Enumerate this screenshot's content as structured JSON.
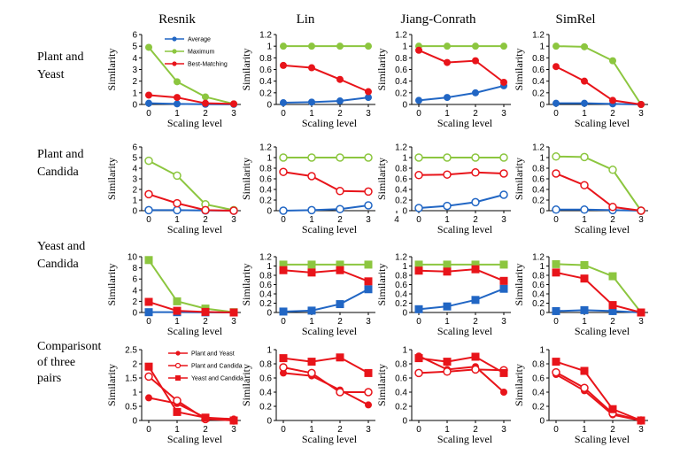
{
  "colors": {
    "Average": "#2166c4",
    "Maximum": "#8cc63f",
    "Best-Matching": "#e8141a",
    "pairs": "#e8141a"
  },
  "columns": [
    "Resnik",
    "Lin",
    "Jiang-Conrath",
    "SimRel"
  ],
  "rows": [
    [
      "Plant and",
      "Yeast"
    ],
    [
      "Plant and",
      "Candida"
    ],
    [
      "Yeast and",
      "Candida"
    ],
    [
      "Comparisont",
      "of three",
      "pairs"
    ]
  ],
  "chart_data": [
    {
      "type": "line",
      "row": 0,
      "col": 0,
      "marker": "filled-circle",
      "xlabel": "Scaling level",
      "ylabel": "Similarity",
      "x": [
        0,
        1,
        2,
        3
      ],
      "xticks": [
        "0",
        "1",
        "2",
        "3"
      ],
      "ylim": [
        0,
        6
      ],
      "yticks": [
        "0",
        "1",
        "2",
        "3",
        "4",
        "5",
        "6"
      ],
      "legend": true,
      "series": [
        {
          "name": "Average",
          "values": [
            0.1,
            0.05,
            0.02,
            0.01
          ]
        },
        {
          "name": "Maximum",
          "values": [
            4.9,
            1.95,
            0.65,
            0.05
          ]
        },
        {
          "name": "Best-Matching",
          "values": [
            0.8,
            0.6,
            0.1,
            0.05
          ]
        }
      ]
    },
    {
      "type": "line",
      "row": 0,
      "col": 1,
      "marker": "filled-circle",
      "xlabel": "Scaling level",
      "ylabel": "Similarity",
      "x": [
        0,
        1,
        2,
        3
      ],
      "xticks": [
        "0",
        "1",
        "2",
        "3"
      ],
      "ylim": [
        0,
        1.2
      ],
      "yticks": [
        "0",
        "0.2",
        "0.4",
        "0.6",
        "0.8",
        "1",
        "1.2"
      ],
      "series": [
        {
          "name": "Average",
          "values": [
            0.03,
            0.04,
            0.06,
            0.12
          ]
        },
        {
          "name": "Maximum",
          "values": [
            1.0,
            1.0,
            1.0,
            1.0
          ]
        },
        {
          "name": "Best-Matching",
          "values": [
            0.67,
            0.63,
            0.43,
            0.22
          ]
        }
      ]
    },
    {
      "type": "line",
      "row": 0,
      "col": 2,
      "marker": "filled-circle",
      "xlabel": "Scaling level",
      "ylabel": "Similarity",
      "x": [
        0,
        1,
        2,
        3
      ],
      "xticks": [
        "0",
        "1",
        "2",
        "3"
      ],
      "ylim": [
        0,
        1.2
      ],
      "yticks": [
        "0",
        "0.2",
        "0.4",
        "0.6",
        "0.8",
        "1",
        "1.2"
      ],
      "series": [
        {
          "name": "Average",
          "values": [
            0.07,
            0.12,
            0.2,
            0.32
          ]
        },
        {
          "name": "Maximum",
          "values": [
            1.0,
            1.0,
            1.0,
            1.0
          ]
        },
        {
          "name": "Best-Matching",
          "values": [
            0.93,
            0.72,
            0.75,
            0.38
          ]
        }
      ]
    },
    {
      "type": "line",
      "row": 0,
      "col": 3,
      "marker": "filled-circle",
      "xlabel": "Scaling level",
      "ylabel": "Similarity",
      "x": [
        0,
        1,
        2,
        3
      ],
      "xticks": [
        "0",
        "1",
        "2",
        "3"
      ],
      "ylim": [
        0,
        1.2
      ],
      "yticks": [
        "0",
        "0.2",
        "0.4",
        "0.6",
        "0.8",
        "1",
        "1.2"
      ],
      "series": [
        {
          "name": "Average",
          "values": [
            0.02,
            0.02,
            0.01,
            0.0
          ]
        },
        {
          "name": "Maximum",
          "values": [
            1.0,
            0.99,
            0.75,
            0.0
          ]
        },
        {
          "name": "Best-Matching",
          "values": [
            0.65,
            0.4,
            0.07,
            0.0
          ]
        }
      ]
    },
    {
      "type": "line",
      "row": 1,
      "col": 0,
      "marker": "hollow-circle",
      "xlabel": "Scaling level",
      "ylabel": "Similarity",
      "x": [
        0,
        1,
        2,
        3
      ],
      "xticks": [
        "0",
        "1",
        "2",
        "3"
      ],
      "ylim": [
        0,
        6
      ],
      "yticks": [
        "0",
        "1",
        "2",
        "3",
        "4",
        "5",
        "6"
      ],
      "series": [
        {
          "name": "Average",
          "values": [
            0.05,
            0.05,
            0.02,
            0.0
          ]
        },
        {
          "name": "Maximum",
          "values": [
            4.7,
            3.3,
            0.6,
            0.05
          ]
        },
        {
          "name": "Best-Matching",
          "values": [
            1.55,
            0.7,
            0.05,
            0.0
          ]
        }
      ]
    },
    {
      "type": "line",
      "row": 1,
      "col": 1,
      "marker": "hollow-circle",
      "xlabel": "Scaling level",
      "ylabel": "Similarity",
      "x": [
        0,
        1,
        2,
        3
      ],
      "xticks": [
        "0",
        "1",
        "2",
        "3",
        "4"
      ],
      "ylim": [
        0,
        1.2
      ],
      "yticks": [
        "0",
        "0.2",
        "0.4",
        "0.6",
        "0.8",
        "1",
        "1.2"
      ],
      "series": [
        {
          "name": "Average",
          "values": [
            0.0,
            0.01,
            0.03,
            0.1
          ]
        },
        {
          "name": "Maximum",
          "values": [
            1.0,
            1.0,
            1.0,
            1.0
          ]
        },
        {
          "name": "Best-Matching",
          "values": [
            0.73,
            0.65,
            0.37,
            0.36
          ]
        }
      ]
    },
    {
      "type": "line",
      "row": 1,
      "col": 2,
      "marker": "hollow-circle",
      "xlabel": "Scaling level",
      "ylabel": "Similarity",
      "x": [
        0,
        1,
        2,
        3
      ],
      "xticks": [
        "0",
        "1",
        "2",
        "3"
      ],
      "ylim": [
        0,
        1.2
      ],
      "yticks": [
        "0",
        "0.2",
        "0.4",
        "0.6",
        "0.8",
        "1",
        "1.2"
      ],
      "series": [
        {
          "name": "Average",
          "values": [
            0.05,
            0.09,
            0.16,
            0.3
          ]
        },
        {
          "name": "Maximum",
          "values": [
            1.0,
            1.0,
            1.0,
            1.0
          ]
        },
        {
          "name": "Best-Matching",
          "values": [
            0.67,
            0.68,
            0.72,
            0.7
          ]
        }
      ]
    },
    {
      "type": "line",
      "row": 1,
      "col": 3,
      "marker": "hollow-circle",
      "xlabel": "Scaling level",
      "ylabel": "Similarity",
      "x": [
        0,
        1,
        2,
        3
      ],
      "xticks": [
        "0",
        "1",
        "2",
        "3"
      ],
      "ylim": [
        0,
        1.2
      ],
      "yticks": [
        "0",
        "0.2",
        "0.4",
        "0.6",
        "0.8",
        "1",
        "1.2"
      ],
      "series": [
        {
          "name": "Average",
          "values": [
            0.02,
            0.02,
            0.01,
            0.0
          ]
        },
        {
          "name": "Maximum",
          "values": [
            1.02,
            1.01,
            0.77,
            0.0
          ]
        },
        {
          "name": "Best-Matching",
          "values": [
            0.7,
            0.48,
            0.07,
            0.0
          ]
        }
      ]
    },
    {
      "type": "line",
      "row": 2,
      "col": 0,
      "marker": "filled-square",
      "xlabel": "Scaling level",
      "ylabel": "Similarity",
      "x": [
        0,
        1,
        2,
        3
      ],
      "xticks": [
        "0",
        "1",
        "2",
        "3"
      ],
      "ylim": [
        0,
        10
      ],
      "yticks": [
        "0",
        "2",
        "4",
        "6",
        "8",
        "10"
      ],
      "series": [
        {
          "name": "Average",
          "values": [
            0.05,
            0.05,
            0.02,
            0.0
          ]
        },
        {
          "name": "Maximum",
          "values": [
            9.4,
            2.0,
            0.7,
            0.05
          ]
        },
        {
          "name": "Best-Matching",
          "values": [
            1.9,
            0.3,
            0.1,
            0.0
          ]
        }
      ]
    },
    {
      "type": "line",
      "row": 2,
      "col": 1,
      "marker": "filled-square",
      "xlabel": "Scaling level",
      "ylabel": "Similarity",
      "x": [
        0,
        1,
        2,
        3
      ],
      "xticks": [
        "0",
        "1",
        "2",
        "3"
      ],
      "ylim": [
        0,
        1.2
      ],
      "yticks": [
        "0",
        "0.2",
        "0.4",
        "0.6",
        "0.8",
        "1",
        "1.2"
      ],
      "series": [
        {
          "name": "Average",
          "values": [
            0.02,
            0.04,
            0.18,
            0.5
          ]
        },
        {
          "name": "Maximum",
          "values": [
            1.03,
            1.03,
            1.03,
            1.03
          ]
        },
        {
          "name": "Best-Matching",
          "values": [
            0.91,
            0.86,
            0.91,
            0.67
          ]
        }
      ]
    },
    {
      "type": "line",
      "row": 2,
      "col": 2,
      "marker": "filled-square",
      "xlabel": "Scaling level",
      "ylabel": "Similarity",
      "x": [
        0,
        1,
        2,
        3
      ],
      "xticks": [
        "0",
        "1",
        "2",
        "3"
      ],
      "ylim": [
        0,
        1.2
      ],
      "yticks": [
        "0",
        "0.2",
        "0.4",
        "0.6",
        "0.8",
        "1",
        "1.2"
      ],
      "series": [
        {
          "name": "Average",
          "values": [
            0.07,
            0.13,
            0.27,
            0.51
          ]
        },
        {
          "name": "Maximum",
          "values": [
            1.03,
            1.03,
            1.03,
            1.03
          ]
        },
        {
          "name": "Best-Matching",
          "values": [
            0.9,
            0.88,
            0.93,
            0.68
          ]
        }
      ]
    },
    {
      "type": "line",
      "row": 2,
      "col": 3,
      "marker": "filled-square",
      "xlabel": "Scaling level",
      "ylabel": "Similarity",
      "x": [
        0,
        1,
        2,
        3
      ],
      "xticks": [
        "0",
        "1",
        "2",
        "3"
      ],
      "ylim": [
        0,
        1.2
      ],
      "yticks": [
        "0",
        "0.2",
        "0.4",
        "0.6",
        "0.8",
        "1",
        "1.2"
      ],
      "series": [
        {
          "name": "Average",
          "values": [
            0.03,
            0.05,
            0.03,
            0.0
          ]
        },
        {
          "name": "Maximum",
          "values": [
            1.04,
            1.02,
            0.78,
            0.0
          ]
        },
        {
          "name": "Best-Matching",
          "values": [
            0.86,
            0.73,
            0.16,
            0.0
          ]
        }
      ]
    },
    {
      "type": "line",
      "row": 3,
      "col": 0,
      "marker": "pairs",
      "xlabel": "Scaling level",
      "ylabel": "Similarity",
      "x": [
        0,
        1,
        2,
        3
      ],
      "xticks": [
        "0",
        "1",
        "2",
        "3"
      ],
      "ylim": [
        0,
        2.5
      ],
      "yticks": [
        "0",
        "0.5",
        "1",
        "1.5",
        "2",
        "2.5"
      ],
      "legend": true,
      "series": [
        {
          "name": "Plant and Yeast",
          "values": [
            0.8,
            0.6,
            0.1,
            0.05
          ]
        },
        {
          "name": "Plant and Candida",
          "values": [
            1.55,
            0.7,
            0.05,
            0.0
          ]
        },
        {
          "name": "Yeast and Candida",
          "values": [
            1.9,
            0.3,
            0.1,
            0.0
          ]
        }
      ]
    },
    {
      "type": "line",
      "row": 3,
      "col": 1,
      "marker": "pairs",
      "xlabel": "Scaling level",
      "ylabel": "Similarity",
      "x": [
        0,
        1,
        2,
        3
      ],
      "xticks": [
        "0",
        "1",
        "2",
        "3"
      ],
      "ylim": [
        0,
        1
      ],
      "yticks": [
        "0",
        "0.2",
        "0.4",
        "0.6",
        "0.8",
        "1"
      ],
      "series": [
        {
          "name": "Plant and Yeast",
          "values": [
            0.67,
            0.63,
            0.43,
            0.22
          ]
        },
        {
          "name": "Plant and Candida",
          "values": [
            0.75,
            0.67,
            0.4,
            0.4
          ]
        },
        {
          "name": "Yeast and Candida",
          "values": [
            0.88,
            0.83,
            0.89,
            0.67
          ]
        }
      ]
    },
    {
      "type": "line",
      "row": 3,
      "col": 2,
      "marker": "pairs",
      "xlabel": "Scaling level",
      "ylabel": "Similarity",
      "x": [
        0,
        1,
        2,
        3
      ],
      "xticks": [
        "0",
        "1",
        "2",
        "3"
      ],
      "ylim": [
        0,
        1
      ],
      "yticks": [
        "0",
        "0.2",
        "0.4",
        "0.6",
        "0.8",
        "1"
      ],
      "series": [
        {
          "name": "Plant and Yeast",
          "values": [
            0.91,
            0.72,
            0.76,
            0.4
          ]
        },
        {
          "name": "Plant and Candida",
          "values": [
            0.67,
            0.69,
            0.72,
            0.71
          ]
        },
        {
          "name": "Yeast and Candida",
          "values": [
            0.88,
            0.83,
            0.9,
            0.67
          ]
        }
      ]
    },
    {
      "type": "line",
      "row": 3,
      "col": 3,
      "marker": "pairs",
      "xlabel": "Scaling level",
      "ylabel": "Similarity",
      "x": [
        0,
        1,
        2,
        3
      ],
      "xticks": [
        "0",
        "1",
        "2",
        "3"
      ],
      "ylim": [
        0,
        1
      ],
      "yticks": [
        "0",
        "0.2",
        "0.4",
        "0.6",
        "0.8",
        "1"
      ],
      "series": [
        {
          "name": "Plant and Yeast",
          "values": [
            0.65,
            0.42,
            0.08,
            0.0
          ]
        },
        {
          "name": "Plant and Candida",
          "values": [
            0.68,
            0.46,
            0.1,
            0.0
          ]
        },
        {
          "name": "Yeast and Candida",
          "values": [
            0.83,
            0.7,
            0.16,
            0.0
          ]
        }
      ]
    }
  ]
}
